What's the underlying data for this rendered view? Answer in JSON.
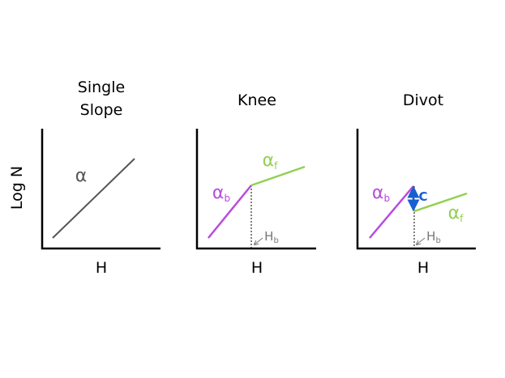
{
  "y_axis_label": "Log N",
  "panels": [
    {
      "title": [
        "Single",
        "Slope"
      ],
      "x_axis_label": "H",
      "labels": {
        "alpha": {
          "main": "α"
        }
      }
    },
    {
      "title": [
        "Knee"
      ],
      "x_axis_label": "H",
      "labels": {
        "alpha_b": {
          "main": "α",
          "sub": "b"
        },
        "alpha_f": {
          "main": "α",
          "sub": "f"
        },
        "h_b": {
          "main": "H",
          "sub": "b"
        }
      }
    },
    {
      "title": [
        "Divot"
      ],
      "x_axis_label": "H",
      "labels": {
        "alpha_b": {
          "main": "α",
          "sub": "b"
        },
        "alpha_f": {
          "main": "α",
          "sub": "f"
        },
        "h_b": {
          "main": "H",
          "sub": "b"
        },
        "c": {
          "main": "C"
        }
      }
    }
  ]
}
